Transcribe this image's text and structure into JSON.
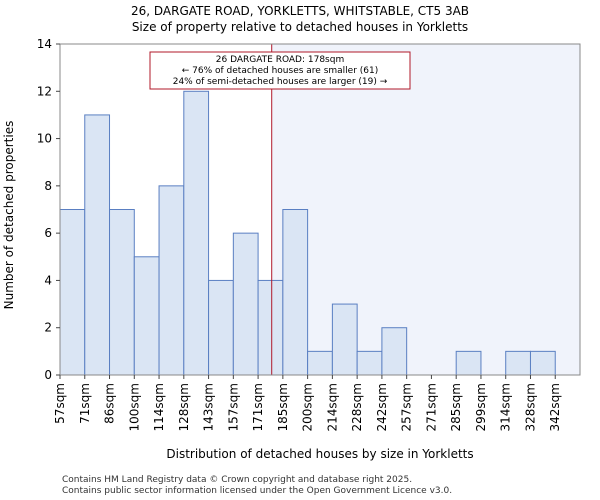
{
  "chart_data": {
    "type": "bar",
    "title": "26, DARGATE ROAD, YORKLETTS, WHITSTABLE, CT5 3AB",
    "subtitle": "Size of property relative to detached houses in Yorkletts",
    "xlabel": "Distribution of detached houses by size in Yorkletts",
    "ylabel": "Number of detached properties",
    "categories": [
      "57sqm",
      "71sqm",
      "86sqm",
      "100sqm",
      "114sqm",
      "128sqm",
      "143sqm",
      "157sqm",
      "171sqm",
      "185sqm",
      "200sqm",
      "214sqm",
      "228sqm",
      "242sqm",
      "257sqm",
      "271sqm",
      "285sqm",
      "299sqm",
      "314sqm",
      "328sqm",
      "342sqm"
    ],
    "values": [
      7,
      11,
      7,
      5,
      8,
      12,
      4,
      6,
      4,
      7,
      1,
      3,
      1,
      2,
      0,
      0,
      1,
      0,
      1,
      1,
      0
    ],
    "ylim": [
      0,
      14
    ],
    "yticks": [
      0,
      2,
      4,
      6,
      8,
      10,
      12,
      14
    ],
    "marker_value_bin": 8.55,
    "colors": {
      "bar_fill": "#dae5f4",
      "bar_stroke": "#5a7fc2",
      "marker": "#b0182a",
      "highlight_region": "#f0f3fb",
      "annotation_border": "#b0182a"
    },
    "annotation": {
      "line1": "26 DARGATE ROAD: 178sqm",
      "line2": "← 76% of detached houses are smaller (61)",
      "line3": "24% of semi-detached houses are larger (19) →"
    }
  },
  "footer": {
    "line1": "Contains HM Land Registry data © Crown copyright and database right 2025.",
    "line2": "Contains public sector information licensed under the Open Government Licence v3.0."
  }
}
